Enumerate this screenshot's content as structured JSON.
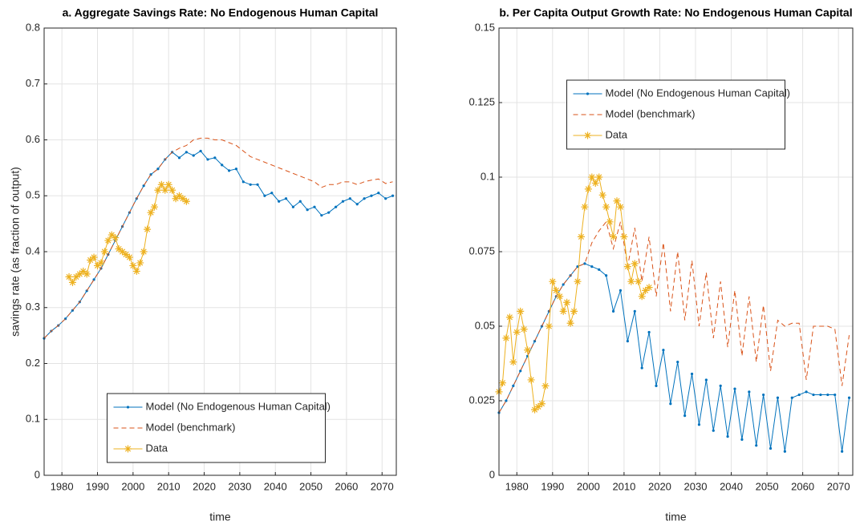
{
  "chart_data": [
    {
      "type": "line",
      "title": "a. Aggregate Savings Rate: No Endogenous Human Capital",
      "xlabel": "time",
      "ylabel": "savings rate (as fraction of output)",
      "xlim": [
        1975,
        2074
      ],
      "ylim": [
        0,
        0.8
      ],
      "xticks": [
        1980,
        1990,
        2000,
        2010,
        2020,
        2030,
        2040,
        2050,
        2060,
        2070
      ],
      "yticks": [
        0,
        0.1,
        0.2,
        0.3,
        0.4,
        0.5,
        0.6,
        0.7,
        0.8
      ],
      "grid": true,
      "legend_loc": "lower center",
      "series": [
        {
          "name": "Model (No Endogenous Human Capital)",
          "color": "#0072bd",
          "line_style": "solid",
          "marker": "dot",
          "x": [
            1975,
            1977,
            1979,
            1981,
            1983,
            1985,
            1987,
            1989,
            1991,
            1993,
            1995,
            1997,
            1999,
            2001,
            2003,
            2005,
            2007,
            2009,
            2011,
            2013,
            2015,
            2017,
            2019,
            2021,
            2023,
            2025,
            2027,
            2029,
            2031,
            2033,
            2035,
            2037,
            2039,
            2041,
            2043,
            2045,
            2047,
            2049,
            2051,
            2053,
            2055,
            2057,
            2059,
            2061,
            2063,
            2065,
            2067,
            2069,
            2071,
            2073
          ],
          "values": [
            0.245,
            0.258,
            0.268,
            0.28,
            0.295,
            0.31,
            0.33,
            0.35,
            0.37,
            0.395,
            0.42,
            0.445,
            0.47,
            0.495,
            0.518,
            0.538,
            0.548,
            0.565,
            0.578,
            0.568,
            0.578,
            0.572,
            0.58,
            0.565,
            0.568,
            0.555,
            0.545,
            0.548,
            0.525,
            0.52,
            0.52,
            0.5,
            0.505,
            0.49,
            0.495,
            0.48,
            0.49,
            0.475,
            0.48,
            0.465,
            0.47,
            0.48,
            0.49,
            0.495,
            0.485,
            0.495,
            0.5,
            0.505,
            0.495,
            0.5
          ]
        },
        {
          "name": "Model (benchmark)",
          "color": "#d95319",
          "line_style": "dashed",
          "marker": "none",
          "x": [
            1975,
            1977,
            1979,
            1981,
            1983,
            1985,
            1987,
            1989,
            1991,
            1993,
            1995,
            1997,
            1999,
            2001,
            2003,
            2005,
            2007,
            2009,
            2011,
            2013,
            2015,
            2017,
            2019,
            2021,
            2023,
            2025,
            2027,
            2029,
            2031,
            2033,
            2035,
            2037,
            2039,
            2041,
            2043,
            2045,
            2047,
            2049,
            2051,
            2053,
            2055,
            2057,
            2059,
            2061,
            2063,
            2065,
            2067,
            2069,
            2071,
            2073
          ],
          "values": [
            0.245,
            0.258,
            0.268,
            0.28,
            0.295,
            0.31,
            0.33,
            0.35,
            0.37,
            0.395,
            0.42,
            0.445,
            0.47,
            0.495,
            0.518,
            0.538,
            0.548,
            0.565,
            0.578,
            0.585,
            0.59,
            0.6,
            0.603,
            0.603,
            0.6,
            0.6,
            0.595,
            0.59,
            0.58,
            0.57,
            0.565,
            0.56,
            0.555,
            0.55,
            0.545,
            0.54,
            0.535,
            0.53,
            0.525,
            0.515,
            0.52,
            0.52,
            0.525,
            0.525,
            0.52,
            0.525,
            0.528,
            0.53,
            0.522,
            0.525
          ]
        },
        {
          "name": "Data",
          "color": "#edb120",
          "line_style": "solid",
          "marker": "asterisk",
          "x": [
            1982,
            1983,
            1984,
            1985,
            1986,
            1987,
            1988,
            1989,
            1990,
            1991,
            1992,
            1993,
            1994,
            1995,
            1996,
            1997,
            1998,
            1999,
            2000,
            2001,
            2002,
            2003,
            2004,
            2005,
            2006,
            2007,
            2008,
            2009,
            2010,
            2011,
            2012,
            2013,
            2014,
            2015
          ],
          "values": [
            0.355,
            0.345,
            0.355,
            0.36,
            0.365,
            0.36,
            0.385,
            0.39,
            0.375,
            0.38,
            0.4,
            0.42,
            0.43,
            0.425,
            0.405,
            0.4,
            0.395,
            0.39,
            0.375,
            0.365,
            0.38,
            0.4,
            0.44,
            0.47,
            0.48,
            0.51,
            0.52,
            0.51,
            0.52,
            0.51,
            0.495,
            0.5,
            0.495,
            0.49
          ]
        }
      ]
    },
    {
      "type": "line",
      "title": "b. Per Capita Output Growth Rate: No Endogenous Human Capital",
      "xlabel": "time",
      "xlim": [
        1975,
        2074
      ],
      "ylim": [
        0,
        0.15
      ],
      "xticks": [
        1980,
        1990,
        2000,
        2010,
        2020,
        2030,
        2040,
        2050,
        2060,
        2070
      ],
      "yticks": [
        0,
        0.025,
        0.05,
        0.075,
        0.1,
        0.125,
        0.15
      ],
      "grid": true,
      "legend_loc": "upper center",
      "series": [
        {
          "name": "Model (No Endogenous Human Capital)",
          "color": "#0072bd",
          "line_style": "solid",
          "marker": "dot",
          "x": [
            1975,
            1977,
            1979,
            1981,
            1983,
            1985,
            1987,
            1989,
            1991,
            1993,
            1995,
            1997,
            1999,
            2001,
            2003,
            2005,
            2007,
            2009,
            2011,
            2013,
            2015,
            2017,
            2019,
            2021,
            2023,
            2025,
            2027,
            2029,
            2031,
            2033,
            2035,
            2037,
            2039,
            2041,
            2043,
            2045,
            2047,
            2049,
            2051,
            2053,
            2055,
            2057,
            2059,
            2061,
            2063,
            2065,
            2067,
            2069,
            2071,
            2073
          ],
          "values": [
            0.021,
            0.025,
            0.03,
            0.035,
            0.04,
            0.045,
            0.05,
            0.055,
            0.06,
            0.064,
            0.067,
            0.07,
            0.071,
            0.07,
            0.069,
            0.067,
            0.055,
            0.062,
            0.045,
            0.055,
            0.036,
            0.048,
            0.03,
            0.042,
            0.024,
            0.038,
            0.02,
            0.034,
            0.017,
            0.032,
            0.015,
            0.03,
            0.013,
            0.029,
            0.012,
            0.028,
            0.01,
            0.027,
            0.009,
            0.026,
            0.008,
            0.026,
            0.027,
            0.028,
            0.027,
            0.027,
            0.027,
            0.027,
            0.008,
            0.026
          ]
        },
        {
          "name": "Model (benchmark)",
          "color": "#d95319",
          "line_style": "dashed",
          "marker": "none",
          "x": [
            1975,
            1977,
            1979,
            1981,
            1983,
            1985,
            1987,
            1989,
            1991,
            1993,
            1995,
            1997,
            1999,
            2001,
            2003,
            2005,
            2007,
            2009,
            2011,
            2013,
            2015,
            2017,
            2019,
            2021,
            2023,
            2025,
            2027,
            2029,
            2031,
            2033,
            2035,
            2037,
            2039,
            2041,
            2043,
            2045,
            2047,
            2049,
            2051,
            2053,
            2055,
            2057,
            2059,
            2061,
            2063,
            2065,
            2067,
            2069,
            2071,
            2073
          ],
          "values": [
            0.021,
            0.025,
            0.03,
            0.035,
            0.04,
            0.045,
            0.05,
            0.055,
            0.06,
            0.064,
            0.067,
            0.07,
            0.071,
            0.078,
            0.082,
            0.085,
            0.076,
            0.085,
            0.07,
            0.083,
            0.065,
            0.08,
            0.06,
            0.078,
            0.055,
            0.075,
            0.052,
            0.072,
            0.05,
            0.068,
            0.046,
            0.065,
            0.043,
            0.062,
            0.04,
            0.06,
            0.038,
            0.057,
            0.035,
            0.052,
            0.05,
            0.051,
            0.051,
            0.032,
            0.05,
            0.05,
            0.05,
            0.049,
            0.03,
            0.047
          ]
        },
        {
          "name": "Data",
          "color": "#edb120",
          "line_style": "solid",
          "marker": "asterisk",
          "x": [
            1975,
            1976,
            1977,
            1978,
            1979,
            1980,
            1981,
            1982,
            1983,
            1984,
            1985,
            1986,
            1987,
            1988,
            1989,
            1990,
            1991,
            1992,
            1993,
            1994,
            1995,
            1996,
            1997,
            1998,
            1999,
            2000,
            2001,
            2002,
            2003,
            2004,
            2005,
            2006,
            2007,
            2008,
            2009,
            2010,
            2011,
            2012,
            2013,
            2014,
            2015,
            2016,
            2017
          ],
          "values": [
            0.028,
            0.031,
            0.046,
            0.053,
            0.038,
            0.048,
            0.055,
            0.049,
            0.042,
            0.032,
            0.022,
            0.023,
            0.024,
            0.03,
            0.05,
            0.065,
            0.062,
            0.06,
            0.055,
            0.058,
            0.051,
            0.055,
            0.065,
            0.08,
            0.09,
            0.096,
            0.1,
            0.098,
            0.1,
            0.094,
            0.09,
            0.085,
            0.08,
            0.092,
            0.09,
            0.08,
            0.07,
            0.065,
            0.071,
            0.065,
            0.06,
            0.062,
            0.063
          ]
        }
      ]
    }
  ]
}
